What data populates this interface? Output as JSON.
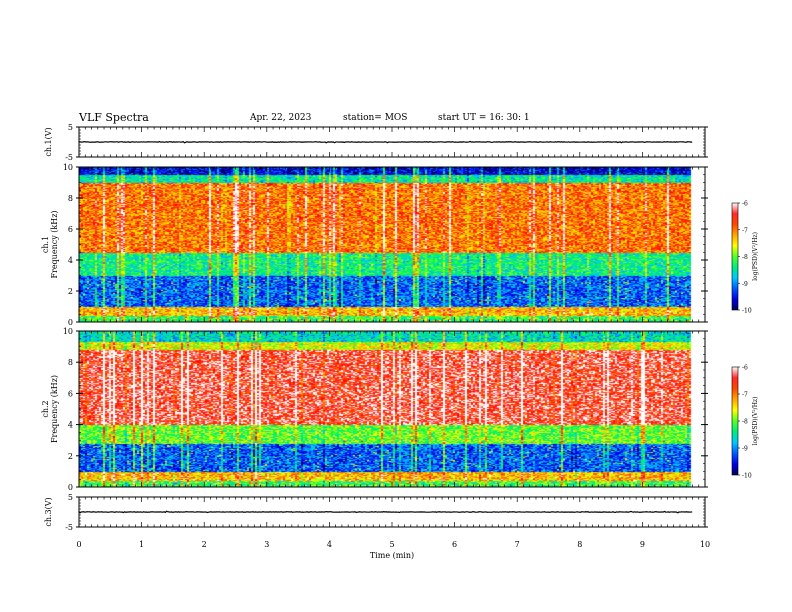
{
  "header": {
    "title": "VLF Spectra",
    "date": "Apr. 22, 2023",
    "station": "station= MOS",
    "start": "start  UT  =   16: 30: 1"
  },
  "chart_data": [
    {
      "type": "line",
      "panel": "ch1-waveform",
      "ylabel": "ch.1(V)",
      "ylim": [
        -5,
        5
      ],
      "y_ticks": [
        "5",
        "-5"
      ],
      "baseline": 0
    },
    {
      "type": "heatmap",
      "panel": "ch1-spectrogram",
      "ylabel": "ch.1",
      "ylabel2": "Frequency (kHz)",
      "ylim": [
        0,
        10
      ],
      "y_ticks": [
        "0",
        "2",
        "4",
        "6",
        "8",
        "10"
      ],
      "colorbar": {
        "label": "log(PSD)(V²/Hz)",
        "range": [
          -10,
          -6
        ],
        "ticks": [
          "-6",
          "-7",
          "-8",
          "-9",
          "-10"
        ]
      },
      "bands": [
        {
          "kHz": [
            0,
            0.4
          ],
          "level": -8.2
        },
        {
          "kHz": [
            0.4,
            1.0
          ],
          "level": -7.3
        },
        {
          "kHz": [
            1.0,
            3.0
          ],
          "level": -9.2
        },
        {
          "kHz": [
            3.0,
            4.5
          ],
          "level": -8.4
        },
        {
          "kHz": [
            4.5,
            9.0
          ],
          "level": -7.0
        },
        {
          "kHz": [
            9.0,
            9.5
          ],
          "level": -8.5
        },
        {
          "kHz": [
            9.5,
            10
          ],
          "level": -9.6
        }
      ]
    },
    {
      "type": "heatmap",
      "panel": "ch2-spectrogram",
      "ylabel": "ch.2",
      "ylabel2": "Frequency (kHz)",
      "ylim": [
        0,
        10
      ],
      "y_ticks": [
        "0",
        "2",
        "4",
        "6",
        "8",
        "10"
      ],
      "colorbar": {
        "label": "log(PSD)(V²/Hz)",
        "range": [
          -10,
          -6
        ],
        "ticks": [
          "-6",
          "-7",
          "-8",
          "-9",
          "-10"
        ]
      },
      "bands": [
        {
          "kHz": [
            0,
            0.4
          ],
          "level": -8.2
        },
        {
          "kHz": [
            0.4,
            1.0
          ],
          "level": -7.3
        },
        {
          "kHz": [
            1.0,
            2.8
          ],
          "level": -9.2
        },
        {
          "kHz": [
            2.8,
            4.0
          ],
          "level": -8.0
        },
        {
          "kHz": [
            4.0,
            8.8
          ],
          "level": -6.4
        },
        {
          "kHz": [
            8.8,
            9.3
          ],
          "level": -7.6
        },
        {
          "kHz": [
            9.3,
            10
          ],
          "level": -8.6
        }
      ]
    },
    {
      "type": "line",
      "panel": "ch3-waveform",
      "ylabel": "ch.3(V)",
      "ylim": [
        -5,
        5
      ],
      "y_ticks": [
        "5",
        "-5"
      ],
      "baseline": 0
    }
  ],
  "x_axis": {
    "label": "Time (min)",
    "range": [
      0,
      10
    ],
    "ticks": [
      "0",
      "1",
      "2",
      "3",
      "4",
      "5",
      "6",
      "7",
      "8",
      "9",
      "10"
    ],
    "data_end": 9.8
  }
}
